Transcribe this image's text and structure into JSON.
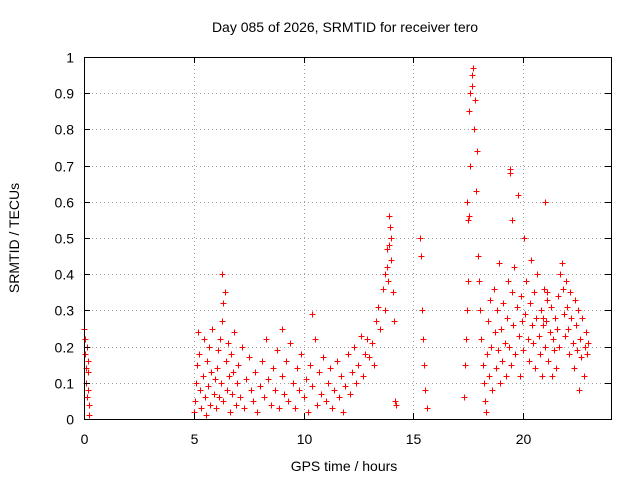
{
  "chart_data": {
    "type": "scatter",
    "title": "Day 085 of 2026, SRMTID for receiver tero",
    "xlabel": "GPS time / hours",
    "ylabel": "SRMTID / TECUs",
    "xlim": [
      0,
      24
    ],
    "ylim": [
      0,
      1
    ],
    "xticks": [
      0,
      5,
      10,
      15,
      20
    ],
    "xtick_labels": [
      "0",
      "5",
      "10",
      "15",
      "20"
    ],
    "yticks": [
      0,
      0.1,
      0.2,
      0.3,
      0.4,
      0.5,
      0.6,
      0.7,
      0.8,
      0.9,
      1
    ],
    "ytick_labels": [
      "0",
      "0.1",
      "0.2",
      "0.3",
      "0.4",
      "0.5",
      "0.6",
      "0.7",
      "0.8",
      "0.9",
      "1"
    ],
    "grid": true,
    "marker": "+",
    "series": [
      {
        "name": "SRMTID",
        "color": "#ff0000",
        "x": [
          0.02,
          0.04,
          0.06,
          0.08,
          0.1,
          0.12,
          0.14,
          0.16,
          0.18,
          0.2,
          0.22,
          0.25,
          5.0,
          5.05,
          5.1,
          5.15,
          5.2,
          5.25,
          5.3,
          5.35,
          5.4,
          5.45,
          5.5,
          5.55,
          5.6,
          5.65,
          5.7,
          5.75,
          5.8,
          5.85,
          5.9,
          5.95,
          6.0,
          6.05,
          6.1,
          6.15,
          6.2,
          6.25,
          6.3,
          6.35,
          6.4,
          6.45,
          6.5,
          6.55,
          6.6,
          6.65,
          6.7,
          6.75,
          6.8,
          6.85,
          6.9,
          6.95,
          7.0,
          7.1,
          7.2,
          7.3,
          7.4,
          7.5,
          7.6,
          7.7,
          7.8,
          7.9,
          8.0,
          8.1,
          8.2,
          8.3,
          8.4,
          8.5,
          8.6,
          8.7,
          8.8,
          8.9,
          9.0,
          9.1,
          9.2,
          9.3,
          9.4,
          9.5,
          9.6,
          9.7,
          9.8,
          9.9,
          10.0,
          10.1,
          10.2,
          10.3,
          10.4,
          10.5,
          10.6,
          10.7,
          10.8,
          10.9,
          11.0,
          11.1,
          11.2,
          11.3,
          11.4,
          11.5,
          11.6,
          11.7,
          11.8,
          11.9,
          12.0,
          12.1,
          12.2,
          12.3,
          12.4,
          12.5,
          12.6,
          12.7,
          12.8,
          12.9,
          13.0,
          13.1,
          13.2,
          13.3,
          13.4,
          13.5,
          13.6,
          13.7,
          13.8,
          13.85,
          13.9,
          13.95,
          14.0,
          14.05,
          14.1,
          14.15,
          14.2,
          15.3,
          15.35,
          15.4,
          15.45,
          15.5,
          15.55,
          15.6,
          17.3,
          17.35,
          17.4,
          17.45,
          17.5,
          17.55,
          17.6,
          17.65,
          17.7,
          17.75,
          17.8,
          17.85,
          17.9,
          17.95,
          18.0,
          18.05,
          18.1,
          18.15,
          18.2,
          18.25,
          18.3,
          18.35,
          18.4,
          18.45,
          18.5,
          18.55,
          18.6,
          18.65,
          18.7,
          18.75,
          18.8,
          18.85,
          18.9,
          18.95,
          19.0,
          19.05,
          19.1,
          19.15,
          19.2,
          19.25,
          19.3,
          19.35,
          19.4,
          19.45,
          19.5,
          19.55,
          19.6,
          19.65,
          19.7,
          19.75,
          19.8,
          19.85,
          19.9,
          19.95,
          20.0,
          20.05,
          20.1,
          20.15,
          20.2,
          20.25,
          20.3,
          20.35,
          20.4,
          20.45,
          20.5,
          20.55,
          20.6,
          20.65,
          20.7,
          20.75,
          20.8,
          20.85,
          20.9,
          20.95,
          21.0,
          21.05,
          21.1,
          21.15,
          21.2,
          21.25,
          21.3,
          21.35,
          21.4,
          21.45,
          21.5,
          21.55,
          21.6,
          21.65,
          21.7,
          21.75,
          21.8,
          21.85,
          21.9,
          21.95,
          22.0,
          22.05,
          22.1,
          22.15,
          22.2,
          22.25,
          22.3,
          22.35,
          22.4,
          22.45,
          22.5,
          22.55,
          22.6,
          22.65,
          22.7,
          22.75,
          22.8,
          22.85,
          22.9,
          22.95,
          17.45,
          17.5,
          17.55,
          17.6,
          17.65,
          19.4,
          19.5,
          20.9,
          21.0,
          21.1,
          13.7,
          13.8,
          13.9,
          14.0,
          6.3,
          6.35,
          10.4,
          9.0
        ],
        "y": [
          0.25,
          0.22,
          0.18,
          0.14,
          0.1,
          0.06,
          0.2,
          0.13,
          0.08,
          0.16,
          0.04,
          0.01,
          0.02,
          0.05,
          0.1,
          0.15,
          0.24,
          0.18,
          0.08,
          0.03,
          0.12,
          0.22,
          0.06,
          0.01,
          0.16,
          0.09,
          0.2,
          0.04,
          0.13,
          0.25,
          0.07,
          0.11,
          0.03,
          0.14,
          0.19,
          0.06,
          0.22,
          0.1,
          0.27,
          0.05,
          0.35,
          0.16,
          0.08,
          0.21,
          0.12,
          0.02,
          0.18,
          0.07,
          0.13,
          0.24,
          0.04,
          0.1,
          0.15,
          0.06,
          0.2,
          0.03,
          0.11,
          0.17,
          0.08,
          0.05,
          0.13,
          0.02,
          0.09,
          0.16,
          0.06,
          0.22,
          0.11,
          0.04,
          0.14,
          0.08,
          0.19,
          0.03,
          0.12,
          0.07,
          0.16,
          0.05,
          0.21,
          0.1,
          0.03,
          0.14,
          0.08,
          0.18,
          0.06,
          0.11,
          0.02,
          0.15,
          0.09,
          0.22,
          0.04,
          0.13,
          0.07,
          0.17,
          0.05,
          0.1,
          0.14,
          0.03,
          0.08,
          0.16,
          0.06,
          0.12,
          0.02,
          0.09,
          0.18,
          0.07,
          0.13,
          0.2,
          0.1,
          0.15,
          0.23,
          0.12,
          0.18,
          0.22,
          0.17,
          0.21,
          0.15,
          0.27,
          0.31,
          0.25,
          0.36,
          0.3,
          0.42,
          0.38,
          0.48,
          0.53,
          0.44,
          0.35,
          0.27,
          0.05,
          0.04,
          0.5,
          0.45,
          0.3,
          0.22,
          0.15,
          0.08,
          0.03,
          0.06,
          0.15,
          0.22,
          0.3,
          0.38,
          0.56,
          0.7,
          0.92,
          0.97,
          0.8,
          0.88,
          0.63,
          0.74,
          0.45,
          0.38,
          0.3,
          0.22,
          0.15,
          0.1,
          0.05,
          0.02,
          0.18,
          0.27,
          0.12,
          0.33,
          0.2,
          0.08,
          0.36,
          0.24,
          0.14,
          0.3,
          0.19,
          0.43,
          0.1,
          0.25,
          0.16,
          0.32,
          0.21,
          0.12,
          0.28,
          0.38,
          0.2,
          0.69,
          0.15,
          0.35,
          0.26,
          0.42,
          0.18,
          0.31,
          0.62,
          0.23,
          0.12,
          0.34,
          0.27,
          0.19,
          0.5,
          0.29,
          0.38,
          0.22,
          0.16,
          0.32,
          0.44,
          0.26,
          0.21,
          0.35,
          0.14,
          0.28,
          0.4,
          0.23,
          0.18,
          0.3,
          0.12,
          0.26,
          0.36,
          0.2,
          0.27,
          0.33,
          0.16,
          0.24,
          0.31,
          0.12,
          0.22,
          0.19,
          0.28,
          0.14,
          0.25,
          0.34,
          0.2,
          0.4,
          0.43,
          0.36,
          0.29,
          0.23,
          0.38,
          0.31,
          0.25,
          0.18,
          0.35,
          0.28,
          0.21,
          0.14,
          0.33,
          0.26,
          0.19,
          0.3,
          0.08,
          0.22,
          0.17,
          0.28,
          0.12,
          0.2,
          0.24,
          0.18,
          0.21,
          0.6,
          0.55,
          0.85,
          0.9,
          0.95,
          0.68,
          0.55,
          0.28,
          0.6,
          0.35,
          0.4,
          0.47,
          0.56,
          0.5,
          0.4,
          0.32,
          0.29,
          0.25
        ]
      }
    ]
  }
}
